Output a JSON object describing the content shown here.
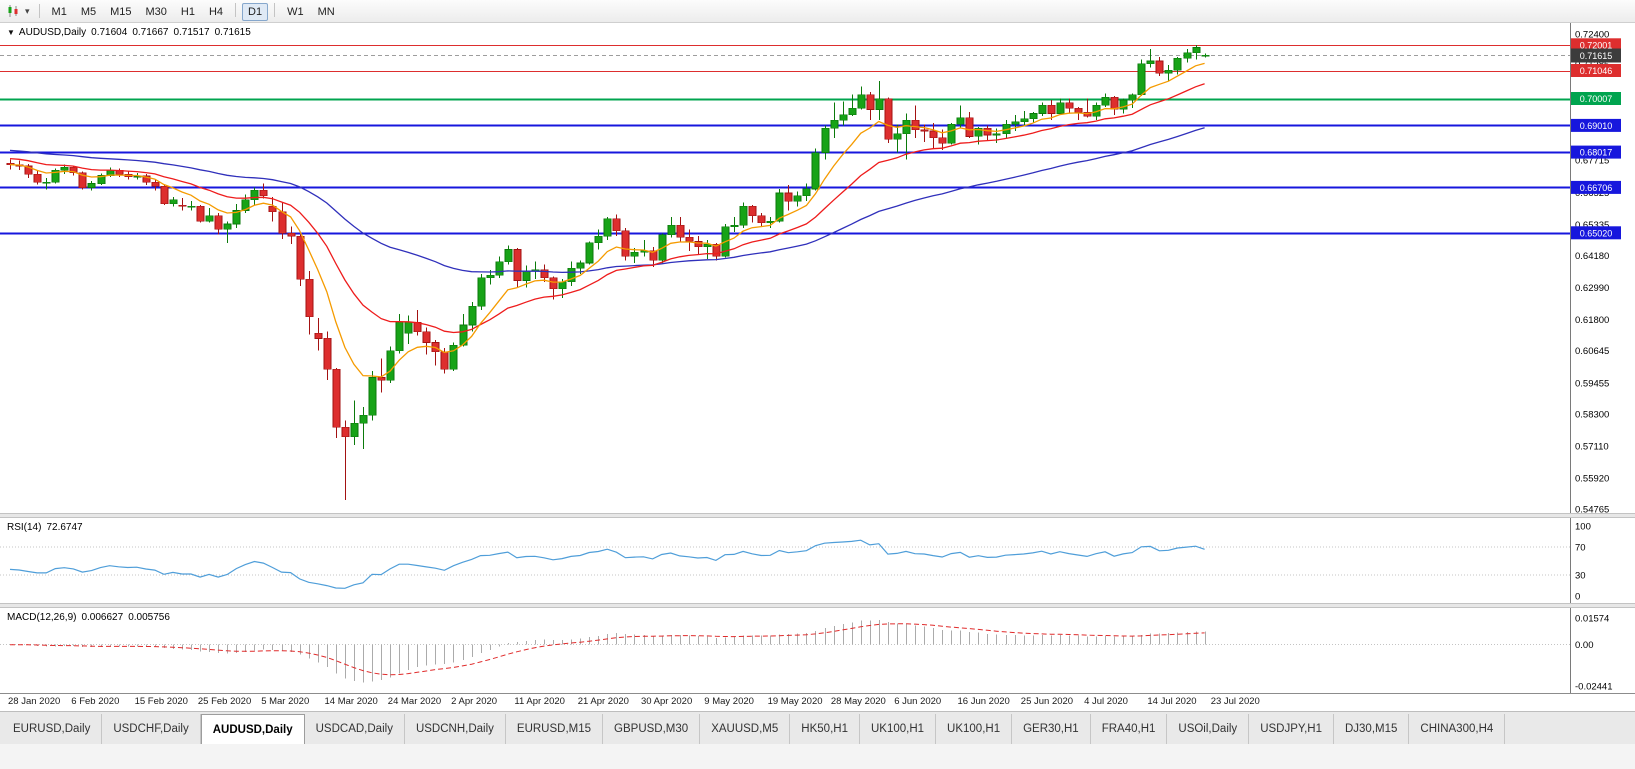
{
  "toolbar": {
    "groups": [
      [
        "M1",
        "M5",
        "M15",
        "M30",
        "H1",
        "H4"
      ],
      [
        "D1"
      ],
      [
        "W1",
        "MN"
      ]
    ],
    "active": "D1"
  },
  "icons": {
    "chart_series_marker": "▼",
    "toolbar_dropdown_caret": "▾"
  },
  "chart_header": {
    "symbol_period": "AUDUSD,Daily",
    "open": "0.71604",
    "high": "0.71667",
    "low": "0.71517",
    "close": "0.71615"
  },
  "rsi": {
    "name": "RSI(14)",
    "value": "72.6747",
    "color": "#4f9ed9",
    "levels": [
      "100",
      "70",
      "30",
      "0"
    ]
  },
  "macd": {
    "name": "MACD(12,26,9)",
    "main_value": "0.006627",
    "signal_value": "0.005756",
    "histogram_color": "#ababab",
    "signal_color": "#e02b2b",
    "axis": [
      {
        "label": "0.01574",
        "value": 0.01574
      },
      {
        "label": "0.00",
        "value": 0
      },
      {
        "label": "-0.02441",
        "value": -0.02441
      }
    ]
  },
  "chart_data": {
    "type": "candlestick",
    "symbol": "AUDUSD",
    "timeframe": "Daily",
    "title": "AUDUSD,Daily 0.71604 0.71667 0.71517 0.71615",
    "y_range": [
      0.5462,
      0.7281
    ],
    "current_price": 0.71615,
    "current_price_label": "0.71615",
    "colors": {
      "bull": "#17a317",
      "bear": "#dd2e2e",
      "bull_border": "#0b7a0b",
      "bear_border": "#a31212"
    },
    "y_ticks": [
      "0.72400",
      "0.71285",
      "0.70095",
      "0.68905",
      "0.67715",
      "0.66525",
      "0.65335",
      "0.64180",
      "0.62990",
      "0.61800",
      "0.60645",
      "0.59455",
      "0.58300",
      "0.57110",
      "0.55920",
      "0.54765"
    ],
    "hlines": [
      {
        "value": 0.72001,
        "label": "0.72001",
        "color": "#dd2e2e",
        "width": 1
      },
      {
        "value": 0.71046,
        "label": "0.71046",
        "color": "#dd2e2e",
        "width": 1
      },
      {
        "value": 0.70007,
        "label": "0.70007",
        "color": "#00a44f",
        "width": 2
      },
      {
        "value": 0.6901,
        "label": "0.69010",
        "color": "#1717dd",
        "width": 2
      },
      {
        "value": 0.68017,
        "label": "0.68017",
        "color": "#1717dd",
        "width": 2
      },
      {
        "value": 0.66706,
        "label": "0.66706",
        "color": "#1717dd",
        "width": 2
      },
      {
        "value": 0.6502,
        "label": "0.65020",
        "color": "#1717dd",
        "width": 2
      }
    ],
    "moving_averages": [
      {
        "period": 55,
        "color": "#3030bb",
        "seed": 0.681
      },
      {
        "period": 20,
        "color": "#ee1c1c",
        "seed": 0.678
      },
      {
        "period": 8,
        "color": "#f59b00",
        "seed": null
      }
    ],
    "x_dates": [
      "28 Jan 2020",
      "6 Feb 2020",
      "15 Feb 2020",
      "25 Feb 2020",
      "5 Mar 2020",
      "14 Mar 2020",
      "24 Mar 2020",
      "2 Apr 2020",
      "11 Apr 2020",
      "21 Apr 2020",
      "30 Apr 2020",
      "9 May 2020",
      "19 May 2020",
      "28 May 2020",
      "6 Jun 2020",
      "16 Jun 2020",
      "25 Jun 2020",
      "4 Jul 2020",
      "14 Jul 2020",
      "23 Jul 2020"
    ],
    "candles": [
      [
        0.676,
        0.6775,
        0.6738,
        0.6755
      ],
      [
        0.6755,
        0.677,
        0.6735,
        0.675
      ],
      [
        0.675,
        0.6758,
        0.6705,
        0.672
      ],
      [
        0.672,
        0.6733,
        0.6682,
        0.669
      ],
      [
        0.669,
        0.6705,
        0.6662,
        0.669
      ],
      [
        0.669,
        0.674,
        0.6685,
        0.6735
      ],
      [
        0.6735,
        0.6755,
        0.672,
        0.6745
      ],
      [
        0.6745,
        0.675,
        0.6715,
        0.6725
      ],
      [
        0.6725,
        0.673,
        0.6662,
        0.667
      ],
      [
        0.667,
        0.6695,
        0.666,
        0.6685
      ],
      [
        0.6685,
        0.6722,
        0.668,
        0.6715
      ],
      [
        0.6715,
        0.6745,
        0.671,
        0.6735
      ],
      [
        0.6735,
        0.674,
        0.671,
        0.672
      ],
      [
        0.672,
        0.673,
        0.67,
        0.671
      ],
      [
        0.671,
        0.6725,
        0.67,
        0.6713
      ],
      [
        0.6713,
        0.672,
        0.668,
        0.669
      ],
      [
        0.669,
        0.67,
        0.666,
        0.6675
      ],
      [
        0.6675,
        0.668,
        0.6605,
        0.661
      ],
      [
        0.661,
        0.6635,
        0.66,
        0.6625
      ],
      [
        0.6605,
        0.6632,
        0.6585,
        0.66
      ],
      [
        0.66,
        0.662,
        0.6585,
        0.66
      ],
      [
        0.66,
        0.6605,
        0.654,
        0.6545
      ],
      [
        0.6545,
        0.6595,
        0.654,
        0.6565
      ],
      [
        0.6565,
        0.6575,
        0.6495,
        0.6515
      ],
      [
        0.6515,
        0.6545,
        0.6465,
        0.6535
      ],
      [
        0.6535,
        0.661,
        0.652,
        0.6585
      ],
      [
        0.6585,
        0.6645,
        0.6575,
        0.6625
      ],
      [
        0.6625,
        0.667,
        0.6605,
        0.666
      ],
      [
        0.666,
        0.6685,
        0.663,
        0.664
      ],
      [
        0.66,
        0.6635,
        0.6545,
        0.658
      ],
      [
        0.658,
        0.6615,
        0.648,
        0.65
      ],
      [
        0.65,
        0.6525,
        0.646,
        0.649
      ],
      [
        0.649,
        0.6495,
        0.6305,
        0.633
      ],
      [
        0.633,
        0.636,
        0.6125,
        0.619
      ],
      [
        0.613,
        0.6185,
        0.6065,
        0.611
      ],
      [
        0.611,
        0.6135,
        0.5955,
        0.5995
      ],
      [
        0.5995,
        0.6,
        0.574,
        0.578
      ],
      [
        0.578,
        0.5805,
        0.551,
        0.5745
      ],
      [
        0.5745,
        0.588,
        0.5715,
        0.5795
      ],
      [
        0.5795,
        0.5855,
        0.57,
        0.5825
      ],
      [
        0.5825,
        0.599,
        0.5805,
        0.5965
      ],
      [
        0.5965,
        0.6035,
        0.591,
        0.5955
      ],
      [
        0.5955,
        0.608,
        0.5945,
        0.6065
      ],
      [
        0.6065,
        0.62,
        0.6055,
        0.617
      ],
      [
        0.613,
        0.6195,
        0.609,
        0.617
      ],
      [
        0.617,
        0.6215,
        0.612,
        0.6135
      ],
      [
        0.6135,
        0.615,
        0.605,
        0.6095
      ],
      [
        0.6095,
        0.6105,
        0.601,
        0.606
      ],
      [
        0.606,
        0.6075,
        0.598,
        0.5995
      ],
      [
        0.5995,
        0.6095,
        0.599,
        0.6085
      ],
      [
        0.6085,
        0.62,
        0.608,
        0.616
      ],
      [
        0.616,
        0.6245,
        0.6135,
        0.623
      ],
      [
        0.623,
        0.635,
        0.6215,
        0.6335
      ],
      [
        0.6335,
        0.6365,
        0.631,
        0.6345
      ],
      [
        0.6345,
        0.6415,
        0.6335,
        0.6395
      ],
      [
        0.6395,
        0.6455,
        0.6385,
        0.644
      ],
      [
        0.644,
        0.6445,
        0.63,
        0.6325
      ],
      [
        0.6325,
        0.638,
        0.63,
        0.636
      ],
      [
        0.636,
        0.6395,
        0.633,
        0.6365
      ],
      [
        0.6365,
        0.6385,
        0.632,
        0.6335
      ],
      [
        0.6335,
        0.634,
        0.6255,
        0.6295
      ],
      [
        0.6295,
        0.633,
        0.626,
        0.632
      ],
      [
        0.632,
        0.6395,
        0.6305,
        0.637
      ],
      [
        0.637,
        0.64,
        0.635,
        0.639
      ],
      [
        0.639,
        0.647,
        0.6385,
        0.6465
      ],
      [
        0.6465,
        0.6515,
        0.644,
        0.649
      ],
      [
        0.649,
        0.656,
        0.6475,
        0.6555
      ],
      [
        0.6555,
        0.657,
        0.649,
        0.651
      ],
      [
        0.651,
        0.652,
        0.64,
        0.6415
      ],
      [
        0.6415,
        0.6445,
        0.639,
        0.643
      ],
      [
        0.643,
        0.6475,
        0.6415,
        0.6435
      ],
      [
        0.6435,
        0.645,
        0.6375,
        0.64
      ],
      [
        0.64,
        0.65,
        0.639,
        0.6495
      ],
      [
        0.6495,
        0.656,
        0.6485,
        0.653
      ],
      [
        0.653,
        0.656,
        0.647,
        0.6485
      ],
      [
        0.6485,
        0.6515,
        0.6435,
        0.647
      ],
      [
        0.647,
        0.649,
        0.642,
        0.645
      ],
      [
        0.645,
        0.6475,
        0.6405,
        0.646
      ],
      [
        0.646,
        0.6465,
        0.64,
        0.6415
      ],
      [
        0.6415,
        0.6535,
        0.641,
        0.6525
      ],
      [
        0.6525,
        0.656,
        0.6505,
        0.653
      ],
      [
        0.653,
        0.6615,
        0.652,
        0.66
      ],
      [
        0.66,
        0.6605,
        0.654,
        0.6565
      ],
      [
        0.6565,
        0.6575,
        0.6525,
        0.654
      ],
      [
        0.654,
        0.656,
        0.652,
        0.6545
      ],
      [
        0.6545,
        0.6665,
        0.654,
        0.665
      ],
      [
        0.665,
        0.668,
        0.6585,
        0.662
      ],
      [
        0.662,
        0.6655,
        0.66,
        0.664
      ],
      [
        0.664,
        0.6685,
        0.662,
        0.6665
      ],
      [
        0.6665,
        0.6815,
        0.666,
        0.68
      ],
      [
        0.68,
        0.69,
        0.6775,
        0.689
      ],
      [
        0.689,
        0.6985,
        0.6855,
        0.692
      ],
      [
        0.692,
        0.699,
        0.69,
        0.694
      ],
      [
        0.694,
        0.7015,
        0.6935,
        0.6965
      ],
      [
        0.6965,
        0.7045,
        0.696,
        0.7015
      ],
      [
        0.7015,
        0.7025,
        0.692,
        0.696
      ],
      [
        0.696,
        0.7065,
        0.692,
        0.7
      ],
      [
        0.7,
        0.7005,
        0.6835,
        0.685
      ],
      [
        0.685,
        0.6905,
        0.68,
        0.687
      ],
      [
        0.687,
        0.6945,
        0.6775,
        0.692
      ],
      [
        0.692,
        0.6975,
        0.6855,
        0.6885
      ],
      [
        0.6885,
        0.6905,
        0.684,
        0.688
      ],
      [
        0.688,
        0.691,
        0.6815,
        0.6855
      ],
      [
        0.6855,
        0.6885,
        0.681,
        0.6835
      ],
      [
        0.6835,
        0.691,
        0.683,
        0.6905
      ],
      [
        0.6905,
        0.6975,
        0.689,
        0.693
      ],
      [
        0.693,
        0.695,
        0.6855,
        0.686
      ],
      [
        0.686,
        0.6895,
        0.683,
        0.689
      ],
      [
        0.689,
        0.69,
        0.6845,
        0.6865
      ],
      [
        0.6865,
        0.689,
        0.6835,
        0.687
      ],
      [
        0.687,
        0.692,
        0.6855,
        0.6905
      ],
      [
        0.6905,
        0.694,
        0.688,
        0.6915
      ],
      [
        0.6915,
        0.6955,
        0.69,
        0.6925
      ],
      [
        0.6925,
        0.695,
        0.691,
        0.6945
      ],
      [
        0.6945,
        0.6985,
        0.6935,
        0.6975
      ],
      [
        0.6975,
        0.6995,
        0.692,
        0.6945
      ],
      [
        0.6945,
        0.7,
        0.694,
        0.6985
      ],
      [
        0.6985,
        0.7,
        0.6945,
        0.6965
      ],
      [
        0.6965,
        0.697,
        0.692,
        0.695
      ],
      [
        0.695,
        0.7,
        0.693,
        0.6935
      ],
      [
        0.6935,
        0.6985,
        0.692,
        0.6975
      ],
      [
        0.6975,
        0.702,
        0.697,
        0.7005
      ],
      [
        0.7005,
        0.701,
        0.694,
        0.696
      ],
      [
        0.696,
        0.7,
        0.6945,
        0.6995
      ],
      [
        0.6995,
        0.702,
        0.6965,
        0.7015
      ],
      [
        0.7015,
        0.7145,
        0.701,
        0.713
      ],
      [
        0.713,
        0.7185,
        0.7115,
        0.714
      ],
      [
        0.714,
        0.7155,
        0.7085,
        0.7095
      ],
      [
        0.7095,
        0.7125,
        0.7065,
        0.7105
      ],
      [
        0.7105,
        0.7155,
        0.709,
        0.715
      ],
      [
        0.715,
        0.7185,
        0.7135,
        0.717
      ],
      [
        0.717,
        0.72,
        0.7145,
        0.719
      ],
      [
        0.716,
        0.7167,
        0.7152,
        0.7162
      ]
    ]
  },
  "tabs": {
    "active_index": 2,
    "items": [
      "EURUSD,Daily",
      "USDCHF,Daily",
      "AUDUSD,Daily",
      "USDCAD,Daily",
      "USDCNH,Daily",
      "EURUSD,M15",
      "GBPUSD,M30",
      "XAUUSD,M5",
      "HK50,H1",
      "UK100,H1",
      "UK100,H1",
      "GER30,H1",
      "FRA40,H1",
      "USOil,Daily",
      "USDJPY,H1",
      "DJ30,M15",
      "CHINA300,H4"
    ]
  }
}
